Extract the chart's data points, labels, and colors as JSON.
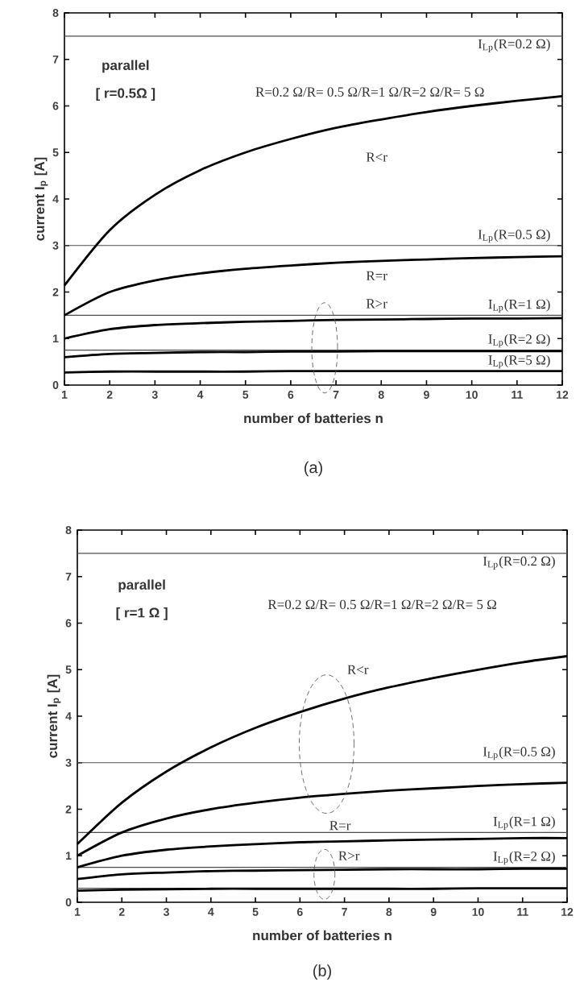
{
  "chart_data": [
    {
      "type": "line",
      "xlabel": "number of batteries  n",
      "ylabel": "current  I$_{p}$ [A]",
      "x": [
        1,
        2,
        3,
        4,
        5,
        6,
        7,
        8,
        9,
        10,
        11,
        12
      ],
      "series": [
        {
          "color": "#000000",
          "values": [
            2.14,
            3.33,
            4.09,
            4.62,
            5.0,
            5.29,
            5.53,
            5.71,
            5.87,
            6.0,
            6.11,
            6.21
          ]
        },
        {
          "color": "#000000",
          "values": [
            1.5,
            2.0,
            2.25,
            2.4,
            2.5,
            2.57,
            2.63,
            2.67,
            2.7,
            2.73,
            2.75,
            2.77
          ]
        },
        {
          "color": "#000000",
          "values": [
            1.0,
            1.2,
            1.29,
            1.33,
            1.36,
            1.38,
            1.4,
            1.41,
            1.42,
            1.43,
            1.43,
            1.44
          ]
        },
        {
          "color": "#000000",
          "values": [
            0.6,
            0.67,
            0.69,
            0.71,
            0.71,
            0.72,
            0.72,
            0.73,
            0.73,
            0.73,
            0.73,
            0.73
          ]
        },
        {
          "color": "#000000",
          "values": [
            0.27,
            0.29,
            0.29,
            0.29,
            0.29,
            0.3,
            0.3,
            0.3,
            0.3,
            0.3,
            0.3,
            0.3
          ]
        }
      ],
      "ref_lines": [
        {
          "axis": "y",
          "value": 7.5
        },
        {
          "axis": "y",
          "value": 3
        },
        {
          "axis": "y",
          "value": 1.5
        },
        {
          "axis": "y",
          "value": 0.75
        }
      ],
      "annotations": [
        "parallel",
        "[ r=0.5Ω ]",
        "R=0.2 Ω/R= 0.5 Ω/R=1 Ω/R=2 Ω/R= 5 Ω",
        "R<r",
        "R=r",
        "R>r",
        "(a)",
        {
          "text": "I$_{Lp}$(R=0.2 Ω)",
          "y": 7.5
        },
        {
          "text": "I$_{Lp}$(R=0.5 Ω)",
          "y": 3
        },
        {
          "text": "I$_{Lp}$(R=1 Ω)",
          "y": 1.5
        },
        {
          "text": "I$_{Lp}$(R=2 Ω)",
          "y": 0.75
        },
        {
          "text": "I$_{Lp}$(R=5 Ω)",
          "y": 0.3
        }
      ],
      "xlim": [
        1,
        12
      ],
      "ylim": [
        0,
        8
      ],
      "xticks": [
        1,
        2,
        3,
        4,
        5,
        6,
        7,
        8,
        9,
        10,
        11,
        12
      ],
      "yticks": [
        0,
        1,
        2,
        3,
        4,
        5,
        6,
        7,
        8
      ]
    },
    {
      "type": "line",
      "xlabel": "number of batteries  n",
      "ylabel": "current  I$_{p}$ [A]",
      "x": [
        1,
        2,
        3,
        4,
        5,
        6,
        7,
        8,
        9,
        10,
        11,
        12
      ],
      "series": [
        {
          "color": "#000000",
          "values": [
            1.25,
            2.14,
            2.81,
            3.33,
            3.75,
            4.09,
            4.38,
            4.62,
            4.82,
            5.0,
            5.16,
            5.29
          ]
        },
        {
          "color": "#000000",
          "values": [
            1.0,
            1.5,
            1.8,
            2.0,
            2.14,
            2.25,
            2.33,
            2.4,
            2.45,
            2.5,
            2.54,
            2.57
          ]
        },
        {
          "color": "#000000",
          "values": [
            0.75,
            1.0,
            1.13,
            1.2,
            1.25,
            1.29,
            1.31,
            1.33,
            1.35,
            1.36,
            1.38,
            1.38
          ]
        },
        {
          "color": "#000000",
          "values": [
            0.5,
            0.6,
            0.64,
            0.67,
            0.68,
            0.69,
            0.7,
            0.71,
            0.71,
            0.71,
            0.72,
            0.72
          ]
        },
        {
          "color": "#000000",
          "values": [
            0.25,
            0.27,
            0.28,
            0.29,
            0.29,
            0.29,
            0.29,
            0.29,
            0.29,
            0.3,
            0.3,
            0.3
          ]
        }
      ],
      "ref_lines": [
        {
          "axis": "y",
          "value": 7.5
        },
        {
          "axis": "y",
          "value": 3
        },
        {
          "axis": "y",
          "value": 1.5
        },
        {
          "axis": "y",
          "value": 0.75
        },
        {
          "axis": "y",
          "value": 0.3
        }
      ],
      "annotations": [
        "parallel",
        "[ r=1 Ω ]",
        "R=0.2 Ω/R= 0.5 Ω/R=1 Ω/R=2 Ω/R= 5 Ω",
        "R<r",
        "R=r",
        "R>r",
        "(b)",
        {
          "text": "I$_{Lp}$(R=0.2 Ω)",
          "y": 7.5
        },
        {
          "text": "I$_{Lp}$(R=0.5 Ω)",
          "y": 3
        },
        {
          "text": "I$_{Lp}$(R=1 Ω)",
          "y": 1.5
        },
        {
          "text": "I$_{Lp}$(R=2 Ω)",
          "y": 0.75
        }
      ],
      "xlim": [
        1,
        12
      ],
      "ylim": [
        0,
        8
      ],
      "xticks": [
        1,
        2,
        3,
        4,
        5,
        6,
        7,
        8,
        9,
        10,
        11,
        12
      ],
      "yticks": [
        0,
        1,
        2,
        3,
        4,
        5,
        6,
        7,
        8
      ]
    }
  ]
}
